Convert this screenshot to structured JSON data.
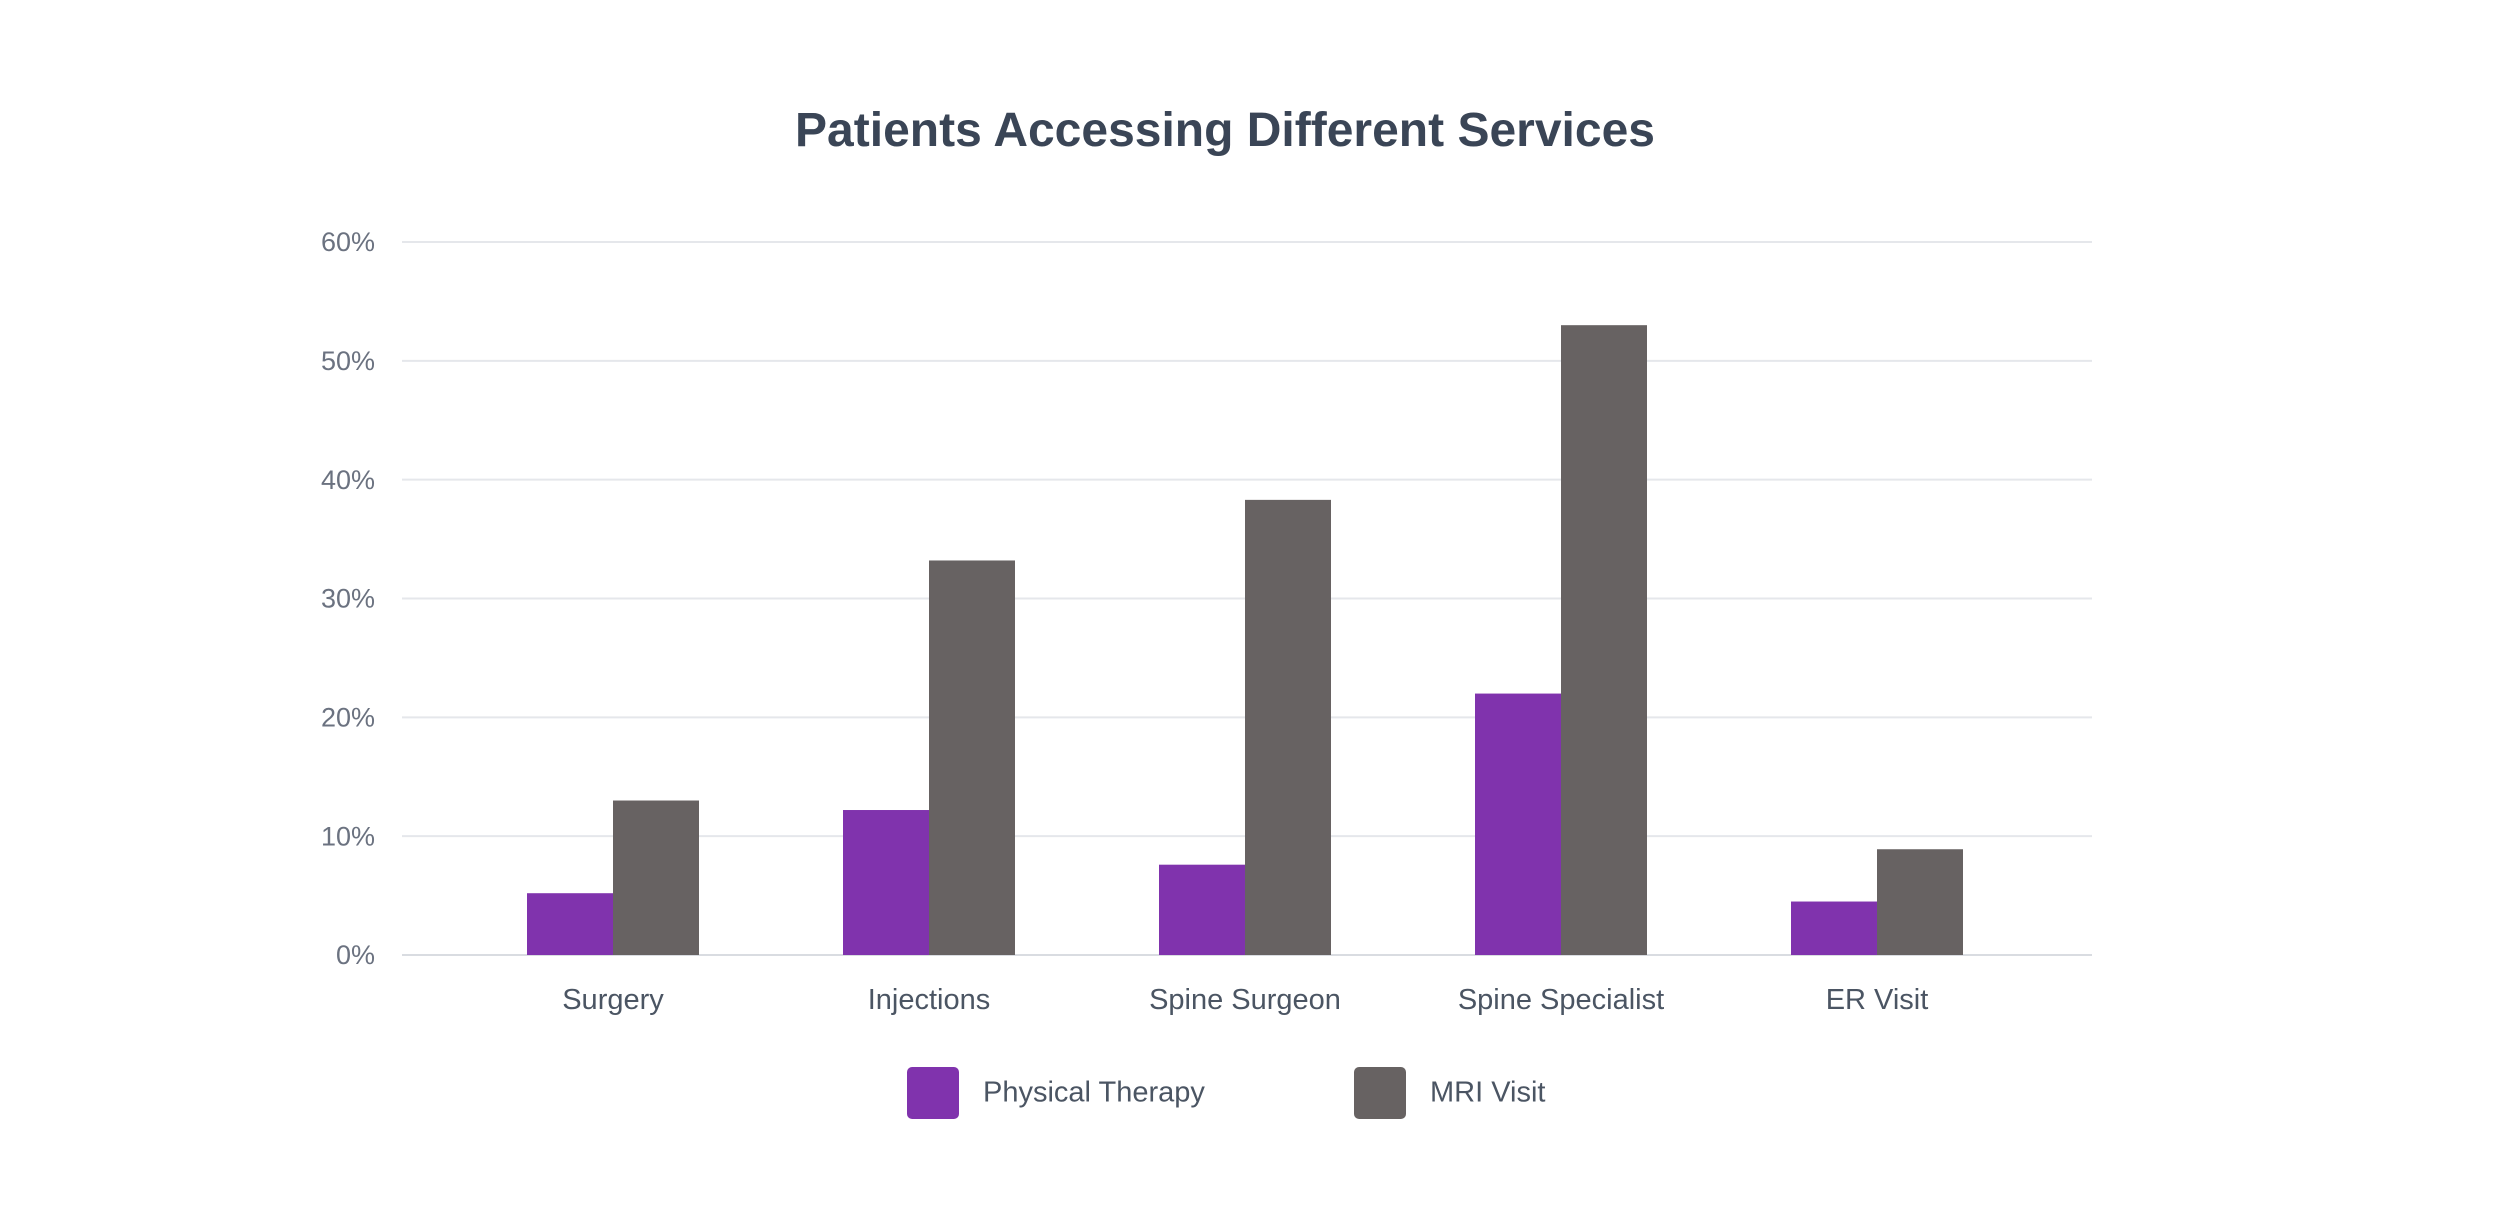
{
  "chart_data": {
    "type": "bar",
    "title": "Patients Accessing Different Services",
    "xlabel": "",
    "ylabel": "",
    "ylim": [
      0,
      60
    ],
    "yticks": [
      0,
      10,
      20,
      30,
      40,
      50,
      60
    ],
    "ytick_labels": [
      "0%",
      "10%",
      "20%",
      "30%",
      "40%",
      "50%",
      "60%"
    ],
    "grid": true,
    "legend_position": "bottom",
    "categories": [
      "Surgery",
      "Injections",
      "Spine Surgeon",
      "Spine Specialist",
      "ER Visit"
    ],
    "series": [
      {
        "name": "Physical Therapy",
        "color": "#8033ad",
        "values": [
          5.2,
          12.2,
          7.6,
          22.0,
          4.5
        ]
      },
      {
        "name": "MRI Visit",
        "color": "#676262",
        "values": [
          13.0,
          33.2,
          38.3,
          53.0,
          8.9
        ]
      }
    ]
  }
}
